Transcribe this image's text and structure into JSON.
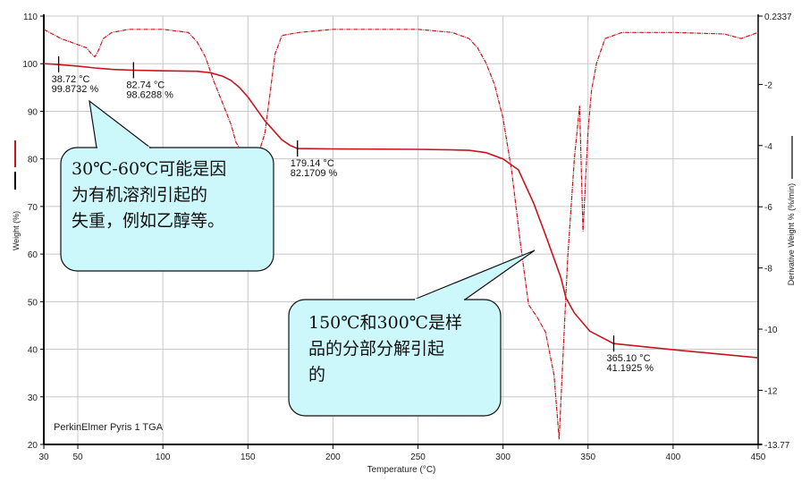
{
  "chart_data": {
    "type": "line",
    "instrument_label": "PerkinElmer Pyris 1 TGA",
    "xlabel": "Temperature (°C)",
    "ylabel": "Weight (%)",
    "y2label": "Derivative Weight % (%/min)",
    "xlim": [
      30,
      450
    ],
    "ylim": [
      20,
      110
    ],
    "y2lim": [
      -13.77,
      0.2337
    ],
    "grid": true,
    "x_ticks": [
      "30",
      "50",
      "100",
      "150",
      "200",
      "250",
      "300",
      "350",
      "400",
      "450"
    ],
    "y_ticks": [
      "20",
      "30",
      "40",
      "50",
      "60",
      "70",
      "80",
      "90",
      "100",
      "110"
    ],
    "y2_ticks": [
      "-13.77",
      "-12",
      "-10",
      "-8",
      "-6",
      "-4",
      "-2",
      "0.2337"
    ],
    "colors": {
      "weight": "#c8141e",
      "derivative": "#c8141e",
      "bubble": "#ccf7fb"
    },
    "series": [
      {
        "name": "Weight",
        "axis": "left",
        "x": [
          30,
          36,
          50,
          60,
          70,
          82.74,
          100,
          120,
          128,
          135,
          140,
          145,
          150,
          155,
          160,
          165,
          170,
          175,
          179.14,
          200,
          250,
          270,
          280,
          290,
          300,
          309,
          318,
          325,
          334,
          337,
          342,
          351,
          365,
          400,
          430,
          450
        ],
        "y": [
          100,
          99.9,
          99.5,
          99.1,
          98.8,
          98.63,
          98.5,
          98.4,
          98.1,
          97.4,
          96.5,
          95,
          93,
          90.5,
          88,
          86,
          84,
          82.8,
          82.17,
          82.1,
          82,
          81.9,
          81.8,
          81.3,
          80,
          77.7,
          70.7,
          64,
          55.1,
          50.8,
          47.6,
          43.8,
          41.2,
          39.9,
          38.9,
          38.2
        ]
      },
      {
        "name": "Derivative Weight",
        "axis": "right",
        "x": [
          30,
          40,
          50,
          55,
          58,
          60,
          62,
          65,
          70,
          80,
          100,
          115,
          120,
          125,
          130,
          135,
          140,
          143,
          148,
          152,
          156,
          160,
          163,
          166,
          170,
          180,
          200,
          250,
          270,
          280,
          285,
          290,
          295,
          300,
          305,
          310,
          315,
          320,
          325,
          330,
          333,
          335,
          338,
          342,
          345,
          347,
          350,
          352,
          355,
          360,
          365,
          370,
          400,
          430,
          440,
          450
        ],
        "y": [
          -0.2,
          -0.5,
          -0.7,
          -0.8,
          -1.0,
          -1.1,
          -0.9,
          -0.5,
          -0.3,
          -0.2,
          -0.2,
          -0.3,
          -0.6,
          -1.1,
          -1.9,
          -2.6,
          -3.3,
          -3.9,
          -4.3,
          -4.5,
          -4.3,
          -3.6,
          -2.3,
          -1.0,
          -0.4,
          -0.3,
          -0.2,
          -0.2,
          -0.3,
          -0.5,
          -0.8,
          -1.3,
          -2.0,
          -3.1,
          -4.8,
          -7.1,
          -9.2,
          -9.6,
          -10.1,
          -11.5,
          -13.6,
          -11.2,
          -7.7,
          -4.4,
          -2.7,
          -6.8,
          -3.5,
          -2.2,
          -1.3,
          -0.5,
          -0.4,
          -0.3,
          -0.3,
          -0.35,
          -0.5,
          -0.3
        ]
      }
    ],
    "annotations": [
      {
        "temp": 38.72,
        "weight": 99.8732,
        "label_temp": "38.72 °C",
        "label_weight": "99.8732 %"
      },
      {
        "temp": 82.74,
        "weight": 98.6288,
        "label_temp": "82.74 °C",
        "label_weight": "98.6288 %"
      },
      {
        "temp": 179.14,
        "weight": 82.1709,
        "label_temp": "179.14 °C",
        "label_weight": "82.1709 %"
      },
      {
        "temp": 365.1,
        "weight": 41.1925,
        "label_temp": "365.10 °C",
        "label_weight": "41.1925 %"
      }
    ],
    "callouts": [
      {
        "lines": [
          "30℃-60℃可能是因",
          "为有机溶剂引起的",
          "失重，例如乙醇等。"
        ]
      },
      {
        "lines": [
          "150℃和300℃是样",
          "品的分部分解引起",
          "的"
        ]
      }
    ]
  }
}
